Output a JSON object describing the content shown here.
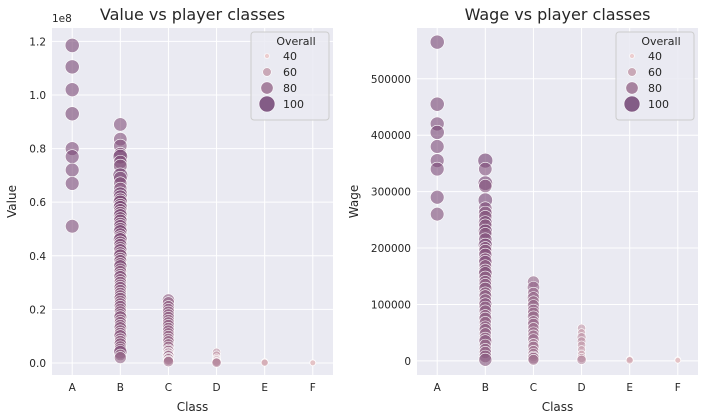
{
  "chart_data": [
    {
      "type": "scatter",
      "title": "Value vs player classes",
      "xlabel": "Class",
      "ylabel": "Value",
      "y_offset_label": "1e8",
      "categories": [
        "A",
        "B",
        "C",
        "D",
        "E",
        "F"
      ],
      "ylim": [
        -4500000,
        125000000
      ],
      "yticks": [
        0,
        20000000,
        40000000,
        60000000,
        80000000,
        100000000,
        120000000
      ],
      "ytick_labels": [
        "0.0",
        "0.2",
        "0.4",
        "0.6",
        "0.8",
        "1.0",
        "1.2"
      ],
      "grid": true,
      "legend": {
        "title": "Overall",
        "placement": "top-right",
        "entries": [
          "40",
          "60",
          "80",
          "100"
        ],
        "sizes": [
          40,
          60,
          80,
          100
        ]
      },
      "size_range": [
        40,
        100
      ],
      "points": {
        "A": [
          [
            118500000,
            90
          ],
          [
            110500000,
            90
          ],
          [
            102000000,
            89
          ],
          [
            93000000,
            90
          ],
          [
            80000000,
            88
          ],
          [
            77000000,
            88
          ],
          [
            72000000,
            88
          ],
          [
            67000000,
            88
          ],
          [
            51000000,
            87
          ]
        ],
        "B": [
          [
            89000000,
            86
          ],
          [
            83500000,
            86
          ],
          [
            81000000,
            86
          ],
          [
            78000000,
            85
          ],
          [
            77000000,
            92
          ],
          [
            75000000,
            86
          ],
          [
            73500000,
            87
          ],
          [
            70000000,
            94
          ],
          [
            69000000,
            86
          ],
          [
            67000000,
            85
          ],
          [
            65000000,
            85
          ],
          [
            63000000,
            91
          ],
          [
            62000000,
            88
          ],
          [
            61000000,
            84
          ],
          [
            60000000,
            90
          ],
          [
            59000000,
            84
          ],
          [
            58000000,
            89
          ],
          [
            57000000,
            85
          ],
          [
            56000000,
            84
          ],
          [
            55000000,
            88
          ],
          [
            54000000,
            84
          ],
          [
            53000000,
            87
          ],
          [
            52000000,
            83
          ],
          [
            51000000,
            86
          ],
          [
            50000000,
            84
          ],
          [
            49000000,
            88
          ],
          [
            48000000,
            83
          ],
          [
            47000000,
            82
          ],
          [
            46000000,
            89
          ],
          [
            45000000,
            83
          ],
          [
            44000000,
            85
          ],
          [
            43000000,
            82
          ],
          [
            42000000,
            86
          ],
          [
            41000000,
            82
          ],
          [
            40000000,
            87
          ],
          [
            39000000,
            81
          ],
          [
            38000000,
            84
          ],
          [
            37000000,
            81
          ],
          [
            36000000,
            86
          ],
          [
            35000000,
            80
          ],
          [
            34000000,
            82
          ],
          [
            33000000,
            80
          ],
          [
            32000000,
            85
          ],
          [
            31000000,
            80
          ],
          [
            30000000,
            81
          ],
          [
            29000000,
            80
          ],
          [
            28000000,
            83
          ],
          [
            27000000,
            80
          ],
          [
            26000000,
            79
          ],
          [
            25000000,
            80
          ],
          [
            24000000,
            82
          ],
          [
            23000000,
            79
          ],
          [
            22000000,
            80
          ],
          [
            21000000,
            81
          ],
          [
            20000000,
            78
          ],
          [
            19000000,
            80
          ],
          [
            18000000,
            79
          ],
          [
            17000000,
            84
          ],
          [
            16000000,
            78
          ],
          [
            15000000,
            80
          ],
          [
            14000000,
            79
          ],
          [
            13000000,
            82
          ],
          [
            12000000,
            78
          ],
          [
            11000000,
            80
          ],
          [
            10000000,
            83
          ],
          [
            9000000,
            77
          ],
          [
            8000000,
            79
          ],
          [
            7000000,
            81
          ],
          [
            6000000,
            78
          ],
          [
            5000000,
            80
          ],
          [
            4000000,
            86
          ],
          [
            3000000,
            76
          ],
          [
            2000000,
            78
          ]
        ],
        "C": [
          [
            23500000,
            80
          ],
          [
            22500000,
            78
          ],
          [
            21000000,
            79
          ],
          [
            20000000,
            77
          ],
          [
            19000000,
            78
          ],
          [
            18000000,
            77
          ],
          [
            17000000,
            78
          ],
          [
            16000000,
            76
          ],
          [
            15000000,
            77
          ],
          [
            14000000,
            78
          ],
          [
            13000000,
            76
          ],
          [
            12000000,
            77
          ],
          [
            11000000,
            75
          ],
          [
            10000000,
            76
          ],
          [
            9000000,
            74
          ],
          [
            8000000,
            76
          ],
          [
            7000000,
            73
          ],
          [
            6000000,
            74
          ],
          [
            5000000,
            72
          ],
          [
            4500000,
            74
          ],
          [
            4000000,
            68
          ],
          [
            3500000,
            72
          ],
          [
            3000000,
            70
          ],
          [
            2500000,
            74
          ],
          [
            2000000,
            68
          ],
          [
            1500000,
            71
          ],
          [
            1000000,
            67
          ],
          [
            500000,
            70
          ]
        ],
        "D": [
          [
            4000000,
            58
          ],
          [
            3000000,
            56
          ],
          [
            2000000,
            54
          ],
          [
            1500000,
            55
          ],
          [
            1000000,
            60
          ],
          [
            500000,
            62
          ],
          [
            300000,
            60
          ],
          [
            100000,
            64
          ]
        ],
        "E": [
          [
            400000,
            50
          ],
          [
            200000,
            48
          ],
          [
            100000,
            52
          ]
        ],
        "F": [
          [
            100000,
            46
          ],
          [
            50000,
            44
          ]
        ]
      }
    },
    {
      "type": "scatter",
      "title": "Wage vs player classes",
      "xlabel": "Class",
      "ylabel": "Wage",
      "categories": [
        "A",
        "B",
        "C",
        "D",
        "E",
        "F"
      ],
      "ylim": [
        -25000,
        590000
      ],
      "yticks": [
        0,
        100000,
        200000,
        300000,
        400000,
        500000
      ],
      "ytick_labels": [
        "0",
        "100000",
        "200000",
        "300000",
        "400000",
        "500000"
      ],
      "grid": true,
      "legend": {
        "title": "Overall",
        "placement": "top-right",
        "entries": [
          "40",
          "60",
          "80",
          "100"
        ],
        "sizes": [
          40,
          60,
          80,
          100
        ]
      },
      "size_range": [
        40,
        100
      ],
      "points": {
        "A": [
          [
            565000,
            90
          ],
          [
            455000,
            90
          ],
          [
            420000,
            89
          ],
          [
            405000,
            90
          ],
          [
            380000,
            88
          ],
          [
            355000,
            88
          ],
          [
            340000,
            88
          ],
          [
            290000,
            88
          ],
          [
            260000,
            87
          ]
        ],
        "B": [
          [
            355000,
            94
          ],
          [
            340000,
            86
          ],
          [
            315000,
            92
          ],
          [
            310000,
            85
          ],
          [
            285000,
            91
          ],
          [
            270000,
            86
          ],
          [
            262000,
            87
          ],
          [
            255000,
            85
          ],
          [
            245000,
            88
          ],
          [
            240000,
            84
          ],
          [
            230000,
            89
          ],
          [
            225000,
            84
          ],
          [
            215000,
            86
          ],
          [
            205000,
            90
          ],
          [
            200000,
            83
          ],
          [
            195000,
            84
          ],
          [
            188000,
            85
          ],
          [
            180000,
            83
          ],
          [
            175000,
            86
          ],
          [
            168000,
            82
          ],
          [
            160000,
            84
          ],
          [
            155000,
            87
          ],
          [
            148000,
            82
          ],
          [
            140000,
            83
          ],
          [
            135000,
            81
          ],
          [
            128000,
            84
          ],
          [
            120000,
            81
          ],
          [
            115000,
            82
          ],
          [
            108000,
            80
          ],
          [
            100000,
            85
          ],
          [
            95000,
            80
          ],
          [
            88000,
            81
          ],
          [
            80000,
            80
          ],
          [
            75000,
            82
          ],
          [
            68000,
            79
          ],
          [
            60000,
            80
          ],
          [
            55000,
            81
          ],
          [
            48000,
            79
          ],
          [
            40000,
            80
          ],
          [
            35000,
            83
          ],
          [
            28000,
            78
          ],
          [
            20000,
            80
          ],
          [
            15000,
            79
          ],
          [
            8000,
            81
          ],
          [
            2000,
            84
          ]
        ],
        "C": [
          [
            140000,
            78
          ],
          [
            130000,
            80
          ],
          [
            120000,
            77
          ],
          [
            112000,
            79
          ],
          [
            105000,
            76
          ],
          [
            98000,
            78
          ],
          [
            90000,
            77
          ],
          [
            85000,
            76
          ],
          [
            78000,
            78
          ],
          [
            70000,
            75
          ],
          [
            65000,
            77
          ],
          [
            58000,
            74
          ],
          [
            50000,
            76
          ],
          [
            45000,
            73
          ],
          [
            38000,
            75
          ],
          [
            30000,
            72
          ],
          [
            25000,
            74
          ],
          [
            18000,
            71
          ],
          [
            12000,
            74
          ],
          [
            8000,
            70
          ],
          [
            5000,
            76
          ],
          [
            2000,
            72
          ]
        ],
        "D": [
          [
            58000,
            58
          ],
          [
            50000,
            56
          ],
          [
            42000,
            62
          ],
          [
            35000,
            60
          ],
          [
            28000,
            58
          ],
          [
            20000,
            56
          ],
          [
            12000,
            55
          ],
          [
            5000,
            62
          ],
          [
            2000,
            64
          ]
        ],
        "E": [
          [
            3000,
            50
          ],
          [
            2000,
            48
          ],
          [
            1000,
            52
          ]
        ],
        "F": [
          [
            2000,
            46
          ],
          [
            1000,
            44
          ]
        ]
      }
    }
  ]
}
